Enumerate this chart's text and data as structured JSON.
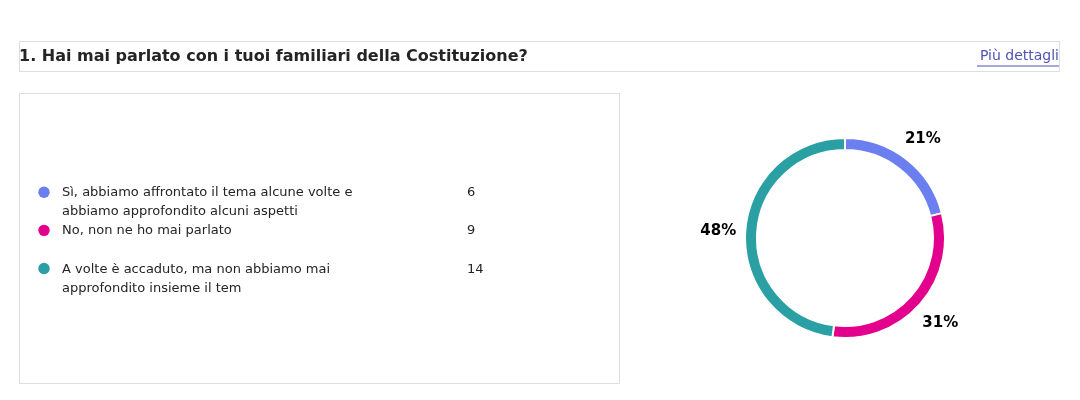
{
  "chart_data": {
    "type": "donut",
    "title": "1. Hai mai parlato con i tuoi familiari della Costituzione?",
    "annotations": [
      "Più dettagli",
      "6",
      "9",
      "14"
    ],
    "categories": [
      "Sì, abbiamo affrontato il tema alcune volte e abbiamo approfondito alcuni aspetti",
      "No, non ne ho mai parlato",
      "A volte è accaduto, ma non abbiamo mai approfondito insieme il tem"
    ],
    "values": [
      21,
      31,
      48
    ],
    "colors": [
      "#6b7ff0",
      "#e3008c",
      "#2aa0a4"
    ],
    "value_labels": [
      "21%",
      "31%",
      "48%"
    ],
    "legend": "left"
  }
}
